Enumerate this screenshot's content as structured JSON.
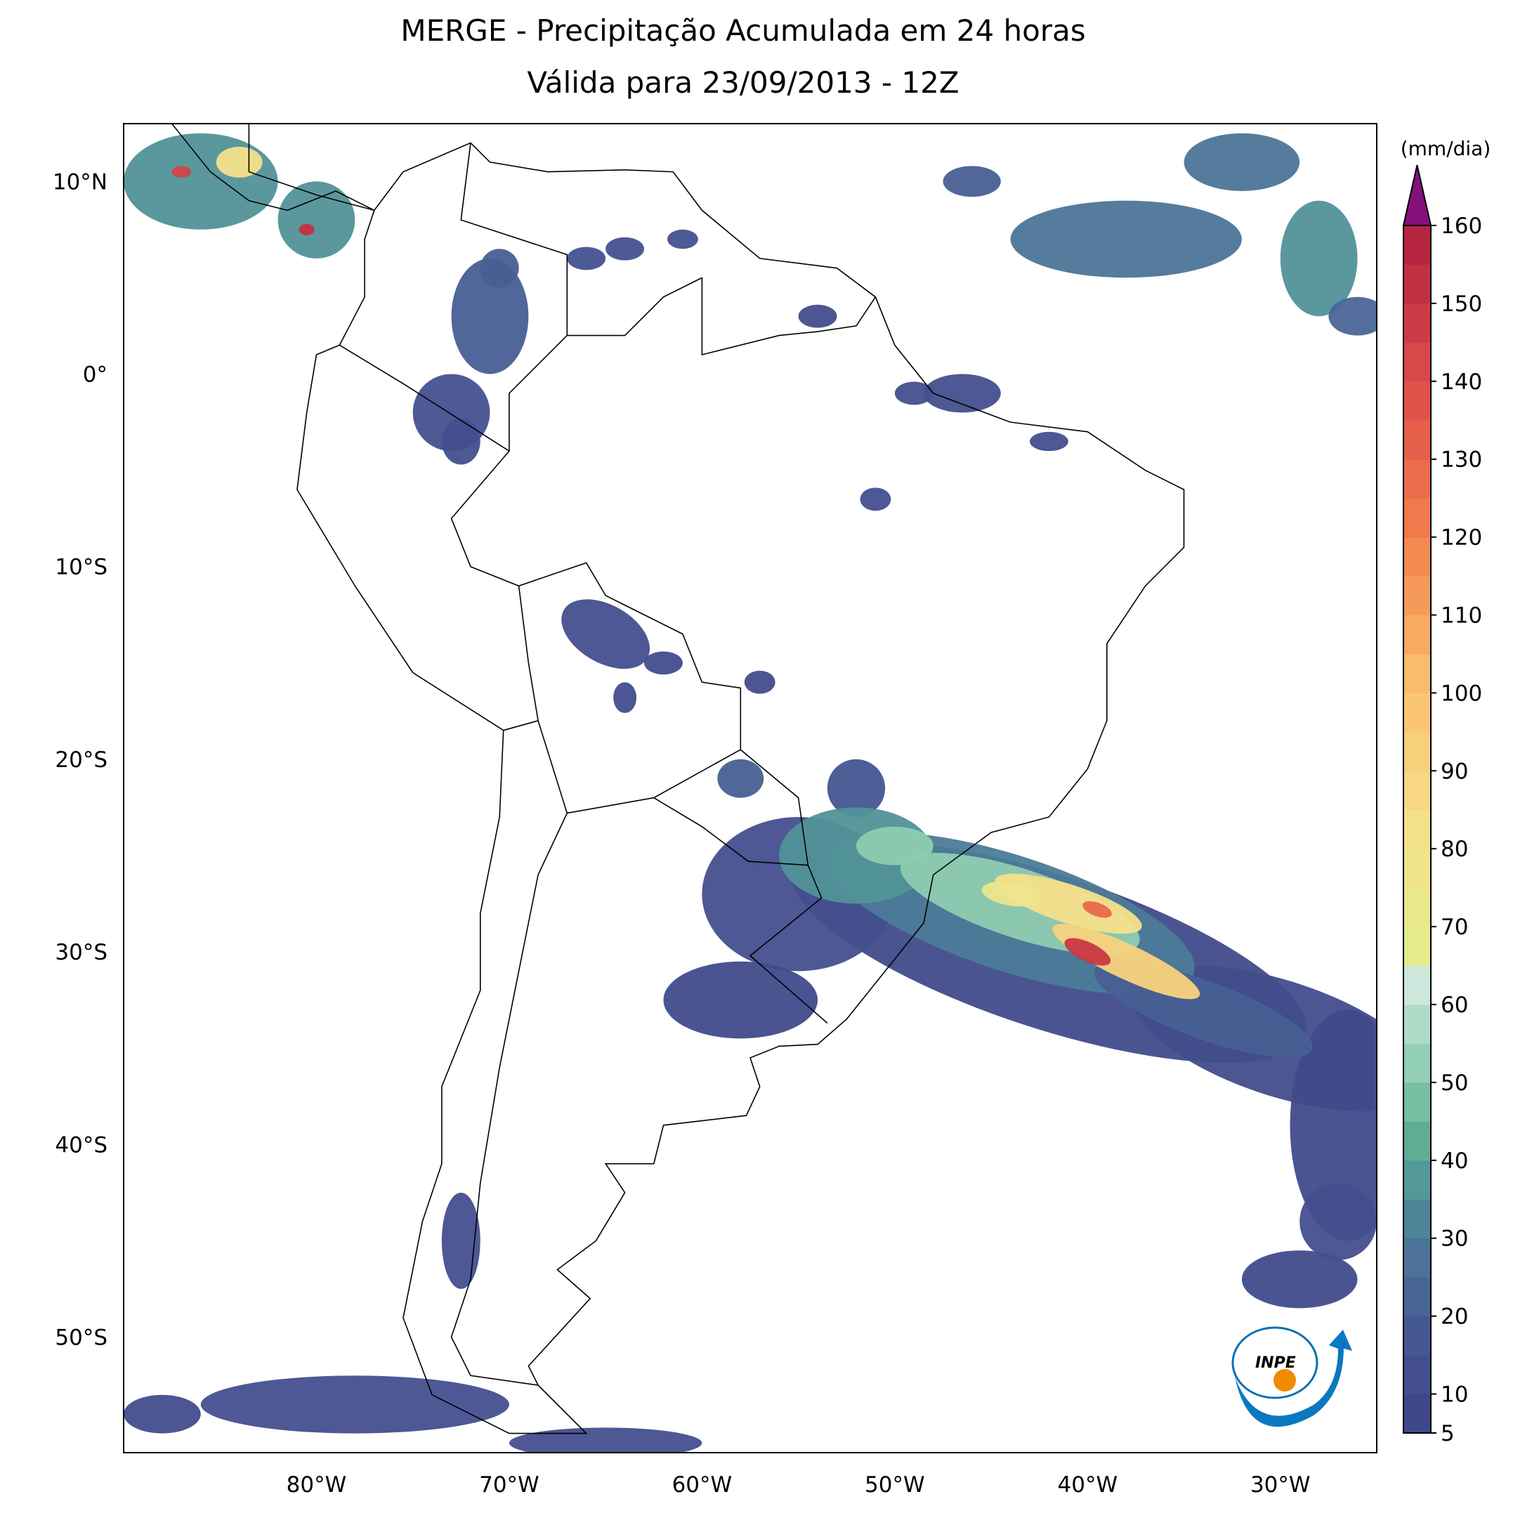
{
  "title": [
    "MERGE - Precipitação Acumulada em 24 horas",
    "Válida para 23/09/2013 - 12Z"
  ],
  "map": {
    "xlim": [
      -90,
      -25
    ],
    "ylim": [
      -56,
      13
    ],
    "xticks": [
      {
        "value": -80,
        "label": "80°W"
      },
      {
        "value": -70,
        "label": "70°W"
      },
      {
        "value": -60,
        "label": "60°W"
      },
      {
        "value": -50,
        "label": "50°W"
      },
      {
        "value": -40,
        "label": "40°W"
      },
      {
        "value": -30,
        "label": "30°W"
      }
    ],
    "yticks": [
      {
        "value": 10,
        "label": "10°N"
      },
      {
        "value": 0,
        "label": "0°"
      },
      {
        "value": -10,
        "label": "10°S"
      },
      {
        "value": -20,
        "label": "20°S"
      },
      {
        "value": -30,
        "label": "30°S"
      },
      {
        "value": -40,
        "label": "40°S"
      },
      {
        "value": -50,
        "label": "50°S"
      }
    ]
  },
  "colorbar": {
    "label": "(mm/dia)",
    "lim": [
      5,
      160
    ],
    "ticks": [
      5,
      10,
      20,
      30,
      40,
      50,
      60,
      70,
      80,
      90,
      100,
      110,
      120,
      130,
      140,
      150,
      160
    ]
  },
  "logo": "INPE"
}
